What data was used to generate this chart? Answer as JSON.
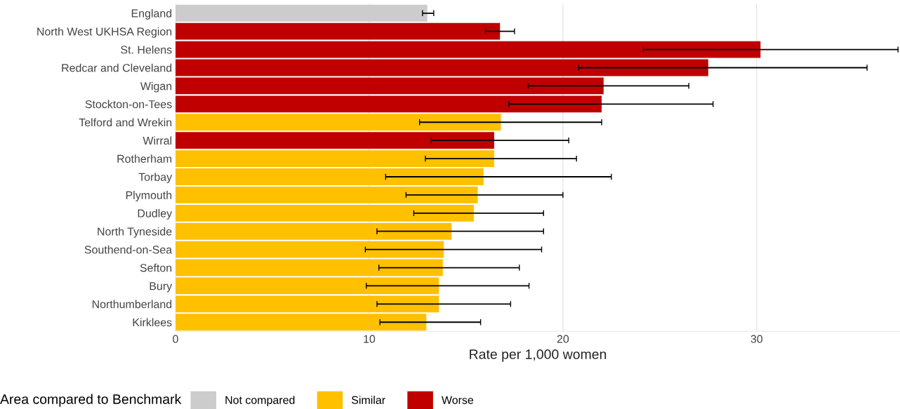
{
  "chart_data": {
    "type": "bar",
    "orientation": "horizontal",
    "categories": [
      "England",
      "North West UKHSA Region",
      "St. Helens",
      "Redcar and Cleveland",
      "Wigan",
      "Stockton-on-Tees",
      "Telford and Wrekin",
      "Wirral",
      "Rotherham",
      "Torbay",
      "Plymouth",
      "Dudley",
      "North Tyneside",
      "Southend-on-Sea",
      "Sefton",
      "Bury",
      "Northumberland",
      "Kirklees"
    ],
    "series": [
      {
        "name": "Not compared",
        "color": "#cccccc",
        "values": [
          13.0,
          null,
          null,
          null,
          null,
          null,
          null,
          null,
          null,
          null,
          null,
          null,
          null,
          null,
          null,
          null,
          null,
          null
        ],
        "errors": [
          [
            12.75,
            13.33
          ],
          null,
          null,
          null,
          null,
          null,
          null,
          null,
          null,
          null,
          null,
          null,
          null,
          null,
          null,
          null,
          null,
          null
        ]
      },
      {
        "name": "Similar",
        "color": "#ffc000",
        "values": [
          null,
          null,
          null,
          null,
          null,
          null,
          16.8,
          null,
          16.45,
          15.9,
          15.6,
          15.4,
          14.25,
          13.85,
          13.8,
          13.6,
          13.6,
          12.95
        ],
        "errors": [
          null,
          null,
          null,
          null,
          null,
          null,
          [
            12.6,
            22.0
          ],
          null,
          [
            12.9,
            20.7
          ],
          [
            10.85,
            22.5
          ],
          [
            11.9,
            20.0
          ],
          [
            12.3,
            19.0
          ],
          [
            10.4,
            19.0
          ],
          [
            9.8,
            18.9
          ],
          [
            10.5,
            17.75
          ],
          [
            9.85,
            18.25
          ],
          [
            10.4,
            17.3
          ],
          [
            10.55,
            15.75
          ]
        ]
      },
      {
        "name": "Worse",
        "color": "#c00000",
        "values": [
          null,
          16.75,
          30.2,
          27.5,
          22.1,
          22.0,
          null,
          16.45,
          null,
          null,
          null,
          null,
          null,
          null,
          null,
          null,
          null,
          null
        ],
        "errors": [
          null,
          [
            16.0,
            17.5
          ],
          [
            24.15,
            37.3
          ],
          [
            20.8,
            35.7
          ],
          [
            18.2,
            26.5
          ],
          [
            17.2,
            27.75
          ],
          null,
          [
            13.2,
            20.3
          ],
          null,
          null,
          null,
          null,
          null,
          null,
          null,
          null,
          null,
          null
        ]
      }
    ],
    "xlabel": "Rate per 1,000 women",
    "legend_title": "Area compared to Benchmark",
    "legend": "bottom",
    "xlim": [
      0,
      37.4
    ],
    "xticks": [
      0,
      10,
      20,
      30
    ],
    "grid": "x"
  }
}
